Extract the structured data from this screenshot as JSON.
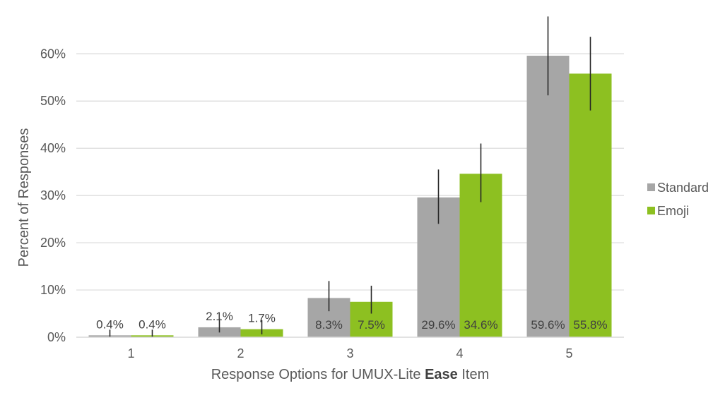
{
  "chart_data": {
    "type": "bar",
    "title": "",
    "xlabel_parts": [
      {
        "text": "Response Options for UMUX-Lite ",
        "bold": false
      },
      {
        "text": "Ease",
        "bold": true
      },
      {
        "text": " Item",
        "bold": false
      }
    ],
    "ylabel": "Percent of Responses",
    "categories": [
      "1",
      "2",
      "3",
      "4",
      "5"
    ],
    "ylim": [
      0,
      60
    ],
    "yticks": [
      0,
      10,
      20,
      30,
      40,
      50,
      60
    ],
    "ytick_labels": [
      "0%",
      "10%",
      "20%",
      "30%",
      "40%",
      "50%",
      "60%"
    ],
    "grid": true,
    "legend_position": "right",
    "series": [
      {
        "name": "Standard",
        "color": "#a6a6a6",
        "values": [
          0.4,
          2.1,
          8.3,
          29.6,
          59.6
        ],
        "labels": [
          "0.4%",
          "2.1%",
          "8.3%",
          "29.6%",
          "59.6%"
        ],
        "error_low": [
          0.0,
          1.0,
          5.5,
          24.0,
          51.2
        ],
        "error_high": [
          1.6,
          4.0,
          11.9,
          35.5,
          67.9
        ]
      },
      {
        "name": "Emoji",
        "color": "#8dc021",
        "values": [
          0.4,
          1.7,
          7.5,
          34.6,
          55.8
        ],
        "labels": [
          "0.4%",
          "1.7%",
          "7.5%",
          "34.6%",
          "55.8%"
        ],
        "error_low": [
          0.0,
          0.6,
          5.0,
          28.6,
          48.0
        ],
        "error_high": [
          1.6,
          3.6,
          10.9,
          41.0,
          63.6
        ]
      }
    ]
  }
}
